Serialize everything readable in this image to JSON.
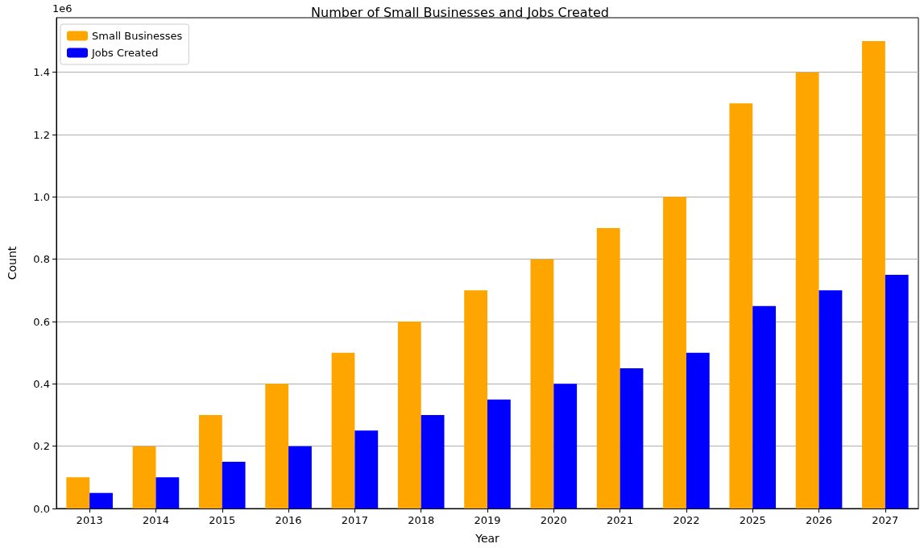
{
  "chart_data": {
    "type": "bar",
    "title": "Number of Small Businesses and Jobs Created",
    "xlabel": "Year",
    "ylabel": "Count",
    "annotations": [
      "1e6"
    ],
    "categories": [
      "2013",
      "2014",
      "2015",
      "2016",
      "2017",
      "2018",
      "2019",
      "2020",
      "2021",
      "2022",
      "2025",
      "2026",
      "2027"
    ],
    "series": [
      {
        "name": "Small Businesses",
        "color": "#ffa500",
        "values": [
          0.1,
          0.2,
          0.3,
          0.4,
          0.5,
          0.6,
          0.7,
          0.8,
          0.9,
          1.0,
          1.3,
          1.4,
          1.5
        ]
      },
      {
        "name": "Jobs Created",
        "color": "#0000ff",
        "values": [
          0.05,
          0.1,
          0.15,
          0.2,
          0.25,
          0.3,
          0.35,
          0.4,
          0.45,
          0.5,
          0.65,
          0.7,
          0.75
        ]
      }
    ],
    "ylim": [
      0,
      1.575
    ],
    "yticks": [
      {
        "value": 0,
        "label": "0.0"
      },
      {
        "value": 0.2,
        "label": "0.2"
      },
      {
        "value": 0.4,
        "label": "0.4"
      },
      {
        "value": 0.6,
        "label": "0.6"
      },
      {
        "value": 0.8,
        "label": "0.8"
      },
      {
        "value": 1.0,
        "label": "1.0"
      },
      {
        "value": 1.2,
        "label": "1.2"
      },
      {
        "value": 1.4,
        "label": "1.4"
      }
    ],
    "grid": "y",
    "legend": "top left"
  }
}
